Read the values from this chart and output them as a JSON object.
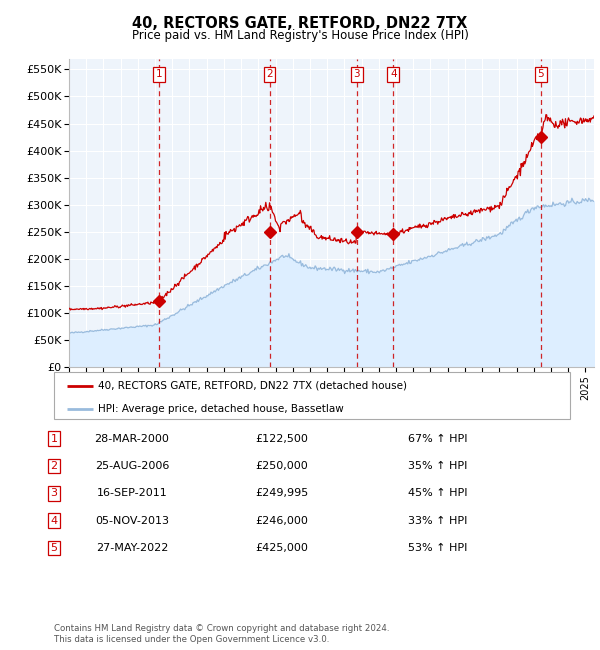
{
  "title": "40, RECTORS GATE, RETFORD, DN22 7TX",
  "subtitle": "Price paid vs. HM Land Registry's House Price Index (HPI)",
  "xlim": [
    1995.0,
    2025.5
  ],
  "ylim": [
    0,
    570000
  ],
  "yticks": [
    0,
    50000,
    100000,
    150000,
    200000,
    250000,
    300000,
    350000,
    400000,
    450000,
    500000,
    550000
  ],
  "ytick_labels": [
    "£0",
    "£50K",
    "£100K",
    "£150K",
    "£200K",
    "£250K",
    "£300K",
    "£350K",
    "£400K",
    "£450K",
    "£500K",
    "£550K"
  ],
  "sale_color": "#cc0000",
  "hpi_color": "#99bbdd",
  "hpi_fill_color": "#ddeeff",
  "background_color": "#eef4fb",
  "grid_color": "#ffffff",
  "dashed_line_color": "#cc0000",
  "sale_points": [
    {
      "num": 1,
      "year": 2000.24,
      "price": 122500,
      "label": "28-MAR-2000",
      "amount": "£122,500",
      "hpi_pct": "67% ↑ HPI"
    },
    {
      "num": 2,
      "year": 2006.65,
      "price": 250000,
      "label": "25-AUG-2006",
      "amount": "£250,000",
      "hpi_pct": "35% ↑ HPI"
    },
    {
      "num": 3,
      "year": 2011.71,
      "price": 249995,
      "label": "16-SEP-2011",
      "amount": "£249,995",
      "hpi_pct": "45% ↑ HPI"
    },
    {
      "num": 4,
      "year": 2013.84,
      "price": 246000,
      "label": "05-NOV-2013",
      "amount": "£246,000",
      "hpi_pct": "33% ↑ HPI"
    },
    {
      "num": 5,
      "year": 2022.41,
      "price": 425000,
      "label": "27-MAY-2022",
      "amount": "£425,000",
      "hpi_pct": "53% ↑ HPI"
    }
  ],
  "footer": "Contains HM Land Registry data © Crown copyright and database right 2024.\nThis data is licensed under the Open Government Licence v3.0.",
  "legend_line1": "40, RECTORS GATE, RETFORD, DN22 7TX (detached house)",
  "legend_line2": "HPI: Average price, detached house, Bassetlaw"
}
